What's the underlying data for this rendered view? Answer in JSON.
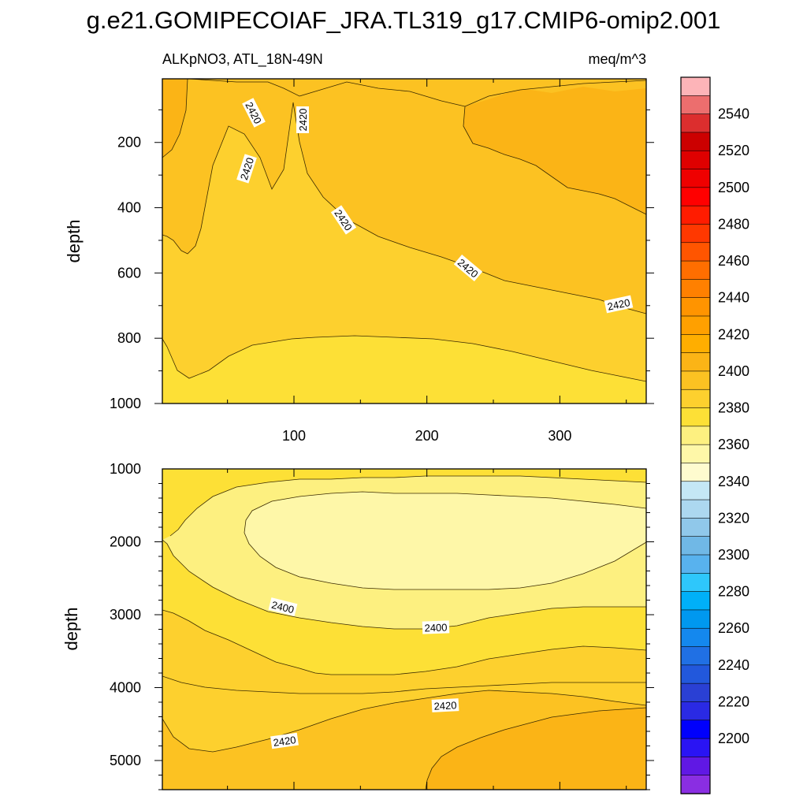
{
  "title": "g.e21.GOMIPECOIAF_JRA.TL319_g17.CMIP6-omip2.001",
  "chart_data": [
    {
      "type": "heatmap",
      "panel": "upper",
      "left_string": "ALKpNO3, ATL_18N-49N",
      "right_string": "meq/m^3",
      "ylabel": "depth",
      "xlim": [
        1,
        365
      ],
      "ylim": [
        1000,
        5
      ],
      "x_ticks": [
        100,
        200,
        300
      ],
      "y_ticks": [
        200,
        400,
        600,
        800,
        1000
      ],
      "contour_labels": [
        "2420",
        "2420",
        "2420",
        "2420",
        "2420",
        "2420"
      ],
      "regions": [
        {
          "level": "2400-2410",
          "description": "deep band below ~900 m"
        },
        {
          "level": "2410-2420",
          "description": "middle layer"
        },
        {
          "level": "2420-2430",
          "description": "upper layer, deepens eastward to ~700 m"
        },
        {
          "level": "2430-2440",
          "description": "near-surface at x<20 and x>220"
        }
      ]
    },
    {
      "type": "heatmap",
      "panel": "lower",
      "ylabel": "depth",
      "ylim": [
        1000,
        5400
      ],
      "y_ticks": [
        1000,
        2000,
        3000,
        4000,
        5000
      ],
      "contour_labels": [
        "2400",
        "2400",
        "2420",
        "2420"
      ],
      "regions": [
        {
          "level": "2390-2400",
          "description": "core 1300-2600 m, x 60-365"
        },
        {
          "level": "2400-2410",
          "description": "shell around core to ~3400 m"
        },
        {
          "level": "2410-2420",
          "description": "3000-4700 m"
        },
        {
          "level": "2420-2430",
          "description": "bottom band"
        },
        {
          "level": "2430-2440",
          "description": "deep eastern bottom, x>200"
        }
      ]
    }
  ],
  "colorbar": {
    "labels": [
      "2540",
      "2520",
      "2500",
      "2480",
      "2460",
      "2440",
      "2420",
      "2400",
      "2380",
      "2360",
      "2340",
      "2320",
      "2300",
      "2280",
      "2260",
      "2240",
      "2220",
      "2200"
    ],
    "colors_top_to_bottom": [
      "#fdb4b8",
      "#ec6e6e",
      "#dc2e2e",
      "#cc0000",
      "#df0000",
      "#ef0000",
      "#ff0000",
      "#ff1c00",
      "#ff3800",
      "#ff5500",
      "#ff6e00",
      "#ff8000",
      "#ff9400",
      "#ffa000",
      "#ffae00",
      "#fbb416",
      "#fcc222",
      "#fdd02e",
      "#fde036",
      "#fdf080",
      "#fef7a8",
      "#fefbcf",
      "#c4e7f5",
      "#acd8f0",
      "#90c8ea",
      "#70b8e6",
      "#58b2ee",
      "#2ec7fb",
      "#00b0f8",
      "#0098ef",
      "#1488ee",
      "#2070e4",
      "#2258dc",
      "#2a40d4",
      "#2a2ae4",
      "#0000fc",
      "#2a14f4",
      "#6018e4",
      "#8a2ee2"
    ]
  }
}
